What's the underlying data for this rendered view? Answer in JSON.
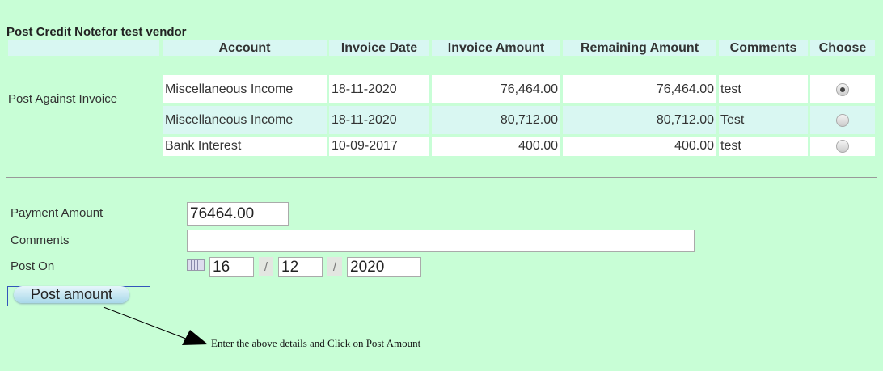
{
  "title": "Post Credit Notefor test vendor",
  "columns": [
    "Account",
    "Invoice Date",
    "Invoice Amount",
    "Remaining Amount",
    "Comments",
    "Choose"
  ],
  "row_label": "Post Against Invoice",
  "rows": [
    {
      "account": "Miscellaneous Income",
      "date": "18-11-2020",
      "invoice_amount": "76,464.00",
      "remaining_amount": "76,464.00",
      "comments": "test",
      "chosen": true
    },
    {
      "account": "Miscellaneous Income",
      "date": "18-11-2020",
      "invoice_amount": "80,712.00",
      "remaining_amount": "80,712.00",
      "comments": "Test",
      "chosen": false
    },
    {
      "account": "Bank Interest",
      "date": "10-09-2017",
      "invoice_amount": "400.00",
      "remaining_amount": "400.00",
      "comments": "test",
      "chosen": false
    }
  ],
  "form": {
    "payment_label": "Payment Amount",
    "payment_value": "76464.00",
    "comments_label": "Comments",
    "comments_value": "",
    "post_on_label": "Post On",
    "day": "16",
    "month": "12",
    "year": "2020",
    "sep": "/",
    "button": "Post amount"
  },
  "annotation": "Enter the above details and Click on Post Amount"
}
